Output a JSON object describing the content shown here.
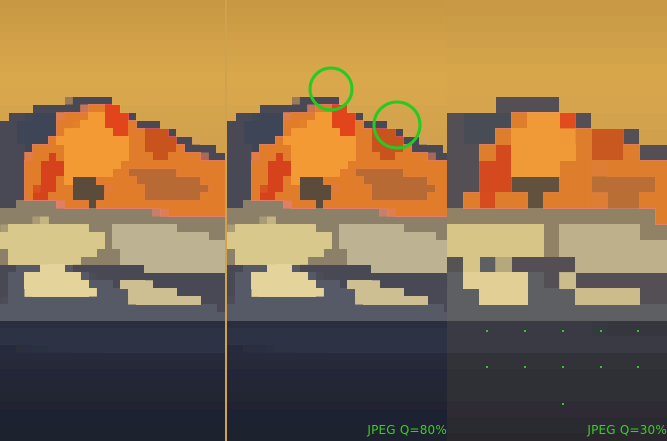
{
  "panels": [
    {
      "label": ""
    },
    {
      "label": "JPEG Q=80%"
    },
    {
      "label": "JPEG Q=30%"
    }
  ],
  "colors": {
    "sky_top": "#c79742",
    "sky_mid": "#d6a44c",
    "sky_bottom": "#b08a4a",
    "peak_orange": "#f08a2a",
    "peak_red": "#d8401a",
    "rock_dark": "#3a3c4a",
    "snow_pale": "#e6d49a",
    "foreground": "#1e2232",
    "annotation_green": "#22cc22"
  }
}
